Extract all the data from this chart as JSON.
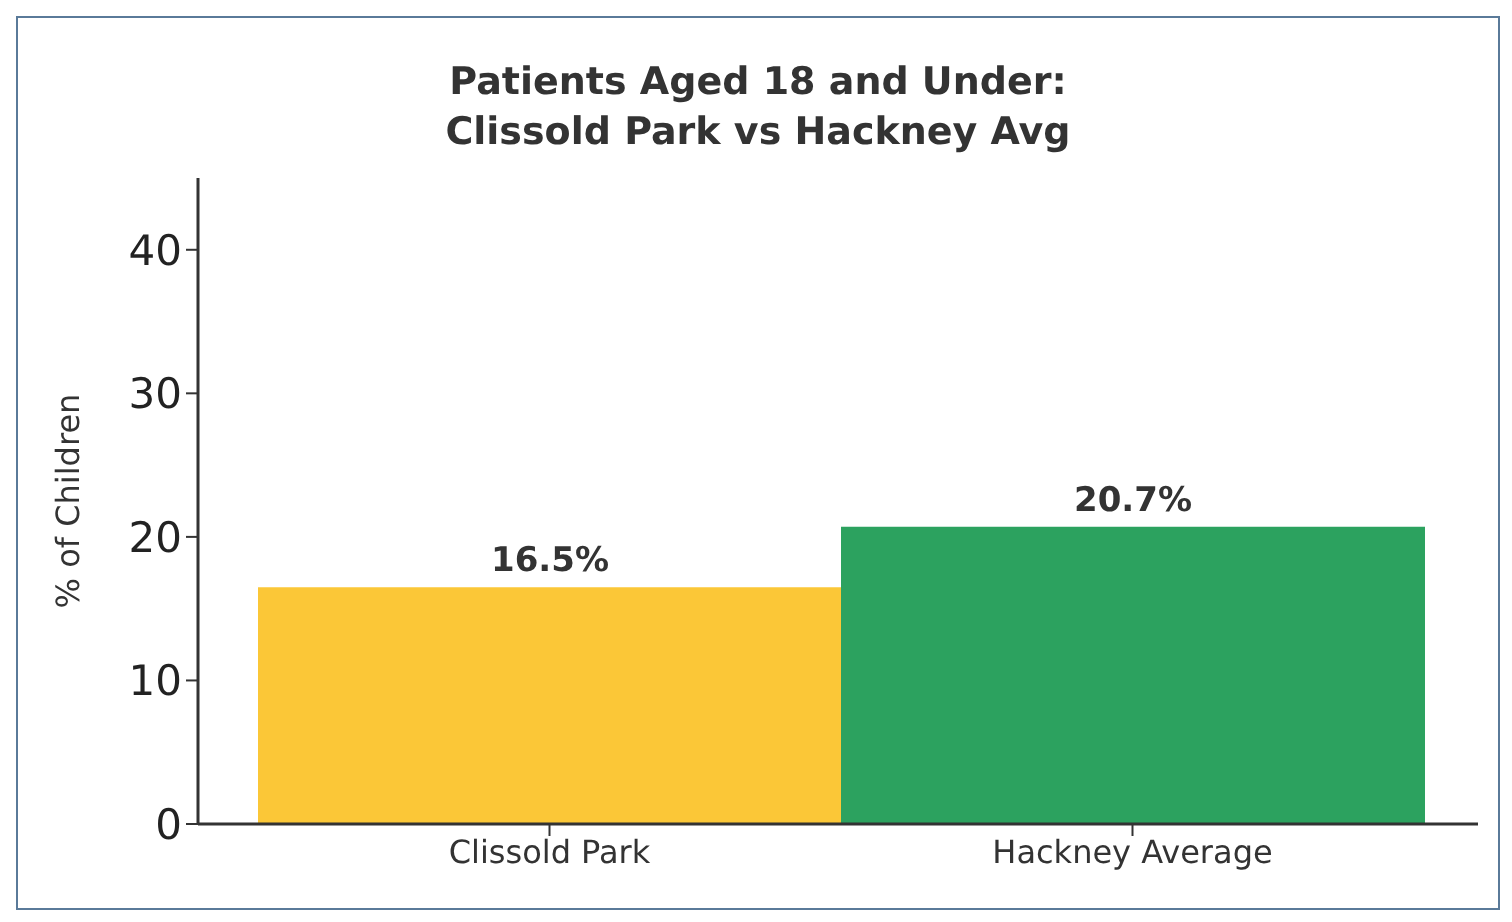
{
  "chart_data": {
    "type": "bar",
    "title": "Patients Aged 18 and Under:\nClissold Park vs Hackney Avg",
    "ylabel": "% of Children",
    "categories": [
      "Clissold Park",
      "Hackney Average"
    ],
    "values": [
      16.5,
      20.7
    ],
    "colors": [
      "#fbc737",
      "#2ca25f"
    ],
    "value_labels": [
      "16.5%",
      "20.7%"
    ],
    "ylim": [
      0,
      45
    ],
    "yticks": [
      0,
      10,
      20,
      30,
      40
    ]
  }
}
